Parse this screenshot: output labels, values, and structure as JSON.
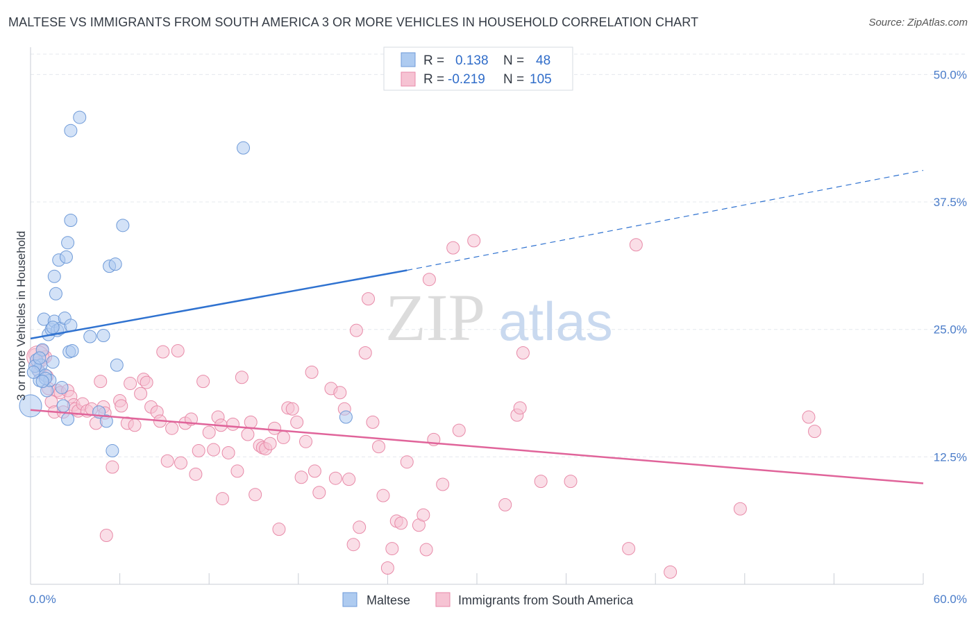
{
  "title": "MALTESE VS IMMIGRANTS FROM SOUTH AMERICA 3 OR MORE VEHICLES IN HOUSEHOLD CORRELATION CHART",
  "source": "Source: ZipAtlas.com",
  "watermark": {
    "zip": "ZIP",
    "atlas": "atlas"
  },
  "colors": {
    "maltese_fill": "#aecbf0",
    "maltese_stroke": "#6e9ad8",
    "maltese_line": "#2f72d0",
    "sa_fill": "#f6c3d3",
    "sa_stroke": "#e88aa8",
    "sa_line": "#e0649a",
    "grid": "#e4e8ee",
    "tick": "#4a7cc9"
  },
  "legend": {
    "r_label": "R =",
    "n_label": "N =",
    "rows": [
      {
        "r": "0.138",
        "n": "48"
      },
      {
        "r": "-0.219",
        "n": "105"
      }
    ]
  },
  "chart_data": {
    "type": "scatter",
    "xlabel": "",
    "ylabel": "3 or more Vehicles in Household",
    "xlim": [
      0,
      60
    ],
    "ylim": [
      0,
      52
    ],
    "x_tick_labels": [
      "0.0%",
      "60.0%"
    ],
    "y_ticks": [
      12.5,
      25.0,
      37.5,
      50.0
    ],
    "y_tick_labels": [
      "12.5%",
      "25.0%",
      "37.5%",
      "50.0%"
    ],
    "grid": true,
    "legend_position": "top-center",
    "series": [
      {
        "name": "Maltese",
        "points": [
          [
            0.0,
            17.5
          ],
          [
            0.4,
            22.0
          ],
          [
            0.5,
            21.0
          ],
          [
            0.6,
            20.0
          ],
          [
            0.7,
            21.5
          ],
          [
            0.8,
            23.0
          ],
          [
            0.9,
            26.0
          ],
          [
            1.0,
            20.5
          ],
          [
            1.1,
            19.0
          ],
          [
            1.2,
            24.5
          ],
          [
            1.3,
            20.0
          ],
          [
            1.4,
            25.0
          ],
          [
            1.5,
            21.8
          ],
          [
            1.6,
            25.8
          ],
          [
            1.6,
            30.2
          ],
          [
            1.7,
            28.5
          ],
          [
            1.9,
            31.8
          ],
          [
            1.8,
            24.9
          ],
          [
            2.0,
            25.1
          ],
          [
            2.1,
            19.3
          ],
          [
            2.2,
            17.5
          ],
          [
            2.3,
            26.1
          ],
          [
            2.4,
            32.1
          ],
          [
            2.5,
            16.2
          ],
          [
            2.5,
            33.5
          ],
          [
            2.6,
            22.8
          ],
          [
            2.7,
            35.7
          ],
          [
            2.7,
            25.4
          ],
          [
            2.7,
            44.5
          ],
          [
            2.8,
            22.9
          ],
          [
            3.3,
            45.8
          ],
          [
            4.0,
            24.3
          ],
          [
            4.6,
            16.9
          ],
          [
            4.9,
            24.4
          ],
          [
            5.1,
            16.0
          ],
          [
            5.3,
            31.2
          ],
          [
            5.5,
            13.1
          ],
          [
            5.7,
            31.4
          ],
          [
            5.8,
            21.5
          ],
          [
            6.2,
            35.2
          ],
          [
            14.3,
            42.8
          ],
          [
            21.2,
            16.4
          ],
          [
            0.3,
            21.4
          ],
          [
            0.6,
            22.2
          ],
          [
            1.0,
            20.2
          ],
          [
            0.2,
            20.8
          ],
          [
            1.5,
            25.2
          ],
          [
            0.8,
            19.9
          ]
        ],
        "trend": {
          "x": [
            0,
            25.3
          ],
          "y": [
            24.1,
            30.8
          ],
          "dashed_to": [
            60,
            40.6
          ]
        }
      },
      {
        "name": "Immigrants from South America",
        "points": [
          [
            0.3,
            22.5
          ],
          [
            0.5,
            21.7
          ],
          [
            0.6,
            20.8
          ],
          [
            0.8,
            22.9
          ],
          [
            1.0,
            22.3
          ],
          [
            1.1,
            20.4
          ],
          [
            1.2,
            19.2
          ],
          [
            1.4,
            17.9
          ],
          [
            1.6,
            16.9
          ],
          [
            1.8,
            19.0
          ],
          [
            2.0,
            18.8
          ],
          [
            2.2,
            16.9
          ],
          [
            2.5,
            19.0
          ],
          [
            2.7,
            18.4
          ],
          [
            2.9,
            17.6
          ],
          [
            3.0,
            17.2
          ],
          [
            3.2,
            17.0
          ],
          [
            3.5,
            17.7
          ],
          [
            3.8,
            17.0
          ],
          [
            4.1,
            17.2
          ],
          [
            4.4,
            15.8
          ],
          [
            4.7,
            19.9
          ],
          [
            4.9,
            17.4
          ],
          [
            5.0,
            16.8
          ],
          [
            5.1,
            4.8
          ],
          [
            5.5,
            11.5
          ],
          [
            6.0,
            18.0
          ],
          [
            6.1,
            17.5
          ],
          [
            6.5,
            15.8
          ],
          [
            6.7,
            19.7
          ],
          [
            7.0,
            15.6
          ],
          [
            7.4,
            18.7
          ],
          [
            7.6,
            20.1
          ],
          [
            7.8,
            19.8
          ],
          [
            8.1,
            17.4
          ],
          [
            8.5,
            16.9
          ],
          [
            8.7,
            16.0
          ],
          [
            8.9,
            22.8
          ],
          [
            9.2,
            12.1
          ],
          [
            9.5,
            15.3
          ],
          [
            9.9,
            22.9
          ],
          [
            10.1,
            11.9
          ],
          [
            10.4,
            15.8
          ],
          [
            10.8,
            16.2
          ],
          [
            11.1,
            10.8
          ],
          [
            11.3,
            13.1
          ],
          [
            11.6,
            19.9
          ],
          [
            12.0,
            14.9
          ],
          [
            12.3,
            13.2
          ],
          [
            12.6,
            16.4
          ],
          [
            12.8,
            15.6
          ],
          [
            12.9,
            8.4
          ],
          [
            13.3,
            12.9
          ],
          [
            13.6,
            15.7
          ],
          [
            13.9,
            11.1
          ],
          [
            14.2,
            20.3
          ],
          [
            14.6,
            14.7
          ],
          [
            14.8,
            15.9
          ],
          [
            15.1,
            8.8
          ],
          [
            15.4,
            13.6
          ],
          [
            15.6,
            13.4
          ],
          [
            15.8,
            13.3
          ],
          [
            16.1,
            13.8
          ],
          [
            16.4,
            15.3
          ],
          [
            16.7,
            5.4
          ],
          [
            17.0,
            14.4
          ],
          [
            17.3,
            17.3
          ],
          [
            17.6,
            17.2
          ],
          [
            17.9,
            15.9
          ],
          [
            18.2,
            10.5
          ],
          [
            18.5,
            14.0
          ],
          [
            18.9,
            20.8
          ],
          [
            19.1,
            11.1
          ],
          [
            19.4,
            9.0
          ],
          [
            20.2,
            19.2
          ],
          [
            20.5,
            10.4
          ],
          [
            20.8,
            18.8
          ],
          [
            21.1,
            17.2
          ],
          [
            21.4,
            10.3
          ],
          [
            21.7,
            3.9
          ],
          [
            21.9,
            24.9
          ],
          [
            22.1,
            5.6
          ],
          [
            22.5,
            22.7
          ],
          [
            23.0,
            15.9
          ],
          [
            23.4,
            13.5
          ],
          [
            23.7,
            8.7
          ],
          [
            24.0,
            1.6
          ],
          [
            24.3,
            3.5
          ],
          [
            24.6,
            6.2
          ],
          [
            24.9,
            6.0
          ],
          [
            25.3,
            12.0
          ],
          [
            26.1,
            5.8
          ],
          [
            26.4,
            6.8
          ],
          [
            26.6,
            3.4
          ],
          [
            26.8,
            29.9
          ],
          [
            27.1,
            14.2
          ],
          [
            27.7,
            9.8
          ],
          [
            28.4,
            33.0
          ],
          [
            28.8,
            15.1
          ],
          [
            29.8,
            33.7
          ],
          [
            31.9,
            7.8
          ],
          [
            32.7,
            16.6
          ],
          [
            32.9,
            17.3
          ],
          [
            33.1,
            22.7
          ],
          [
            34.3,
            10.1
          ]
        ],
        "trend": {
          "x": [
            0,
            60
          ],
          "y": [
            17.1,
            9.9
          ]
        }
      }
    ],
    "extra_points_sa": [
      [
        36.3,
        10.1
      ],
      [
        40.7,
        33.3
      ],
      [
        40.2,
        3.5
      ],
      [
        43.0,
        1.2
      ],
      [
        47.7,
        7.4
      ],
      [
        52.3,
        16.4
      ],
      [
        52.7,
        15.0
      ],
      [
        22.7,
        28.0
      ]
    ]
  }
}
